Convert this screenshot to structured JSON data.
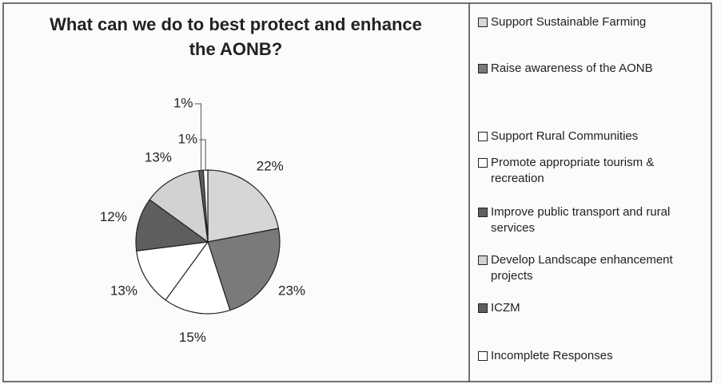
{
  "chart_data": {
    "type": "pie",
    "title": "What can we do to best protect and enhance the AONB?",
    "categories": [
      "Support Sustainable Farming",
      "Raise awareness of the AONB",
      "Support Rural Communities",
      "Promote appropriate tourism & recreation",
      "Improve public transport and rural services",
      "Develop Landscape enhancement projects",
      "ICZM",
      "Incomplete Responses"
    ],
    "values": [
      22,
      23,
      15,
      13,
      12,
      13,
      1,
      1
    ],
    "value_labels": [
      "22%",
      "23%",
      "15%",
      "13%",
      "12%",
      "13%",
      "1%",
      "1%"
    ],
    "colors": [
      "#d6d6d6",
      "#7a7a7a",
      "#ffffff",
      "#ffffff",
      "#5e5e5e",
      "#d2d2d2",
      "#5e5e5e",
      "#ffffff"
    ],
    "legend": "right"
  }
}
